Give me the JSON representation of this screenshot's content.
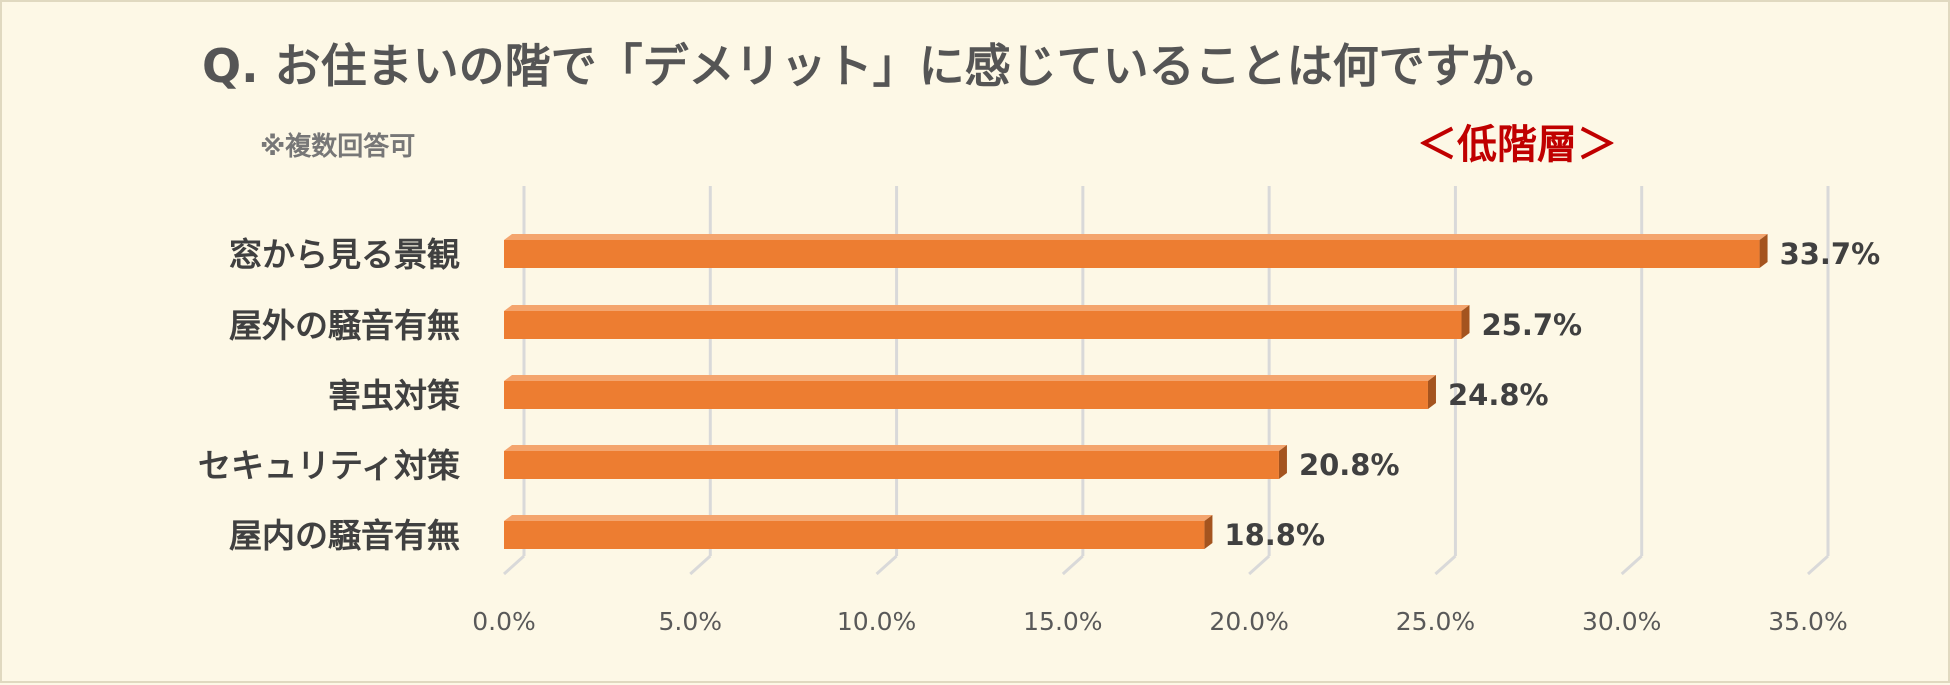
{
  "header": {
    "title": "Q. お住まいの階で「デメリット」に感じていることは何ですか。",
    "note": "※複数回答可",
    "segment": "＜低階層＞"
  },
  "colors": {
    "bar_front": "#ed7d31",
    "bar_top": "#f4a56e",
    "bar_side": "#a4541f",
    "grid": "#d9d9d9",
    "background": "#fdf8e6"
  },
  "chart_data": {
    "type": "bar",
    "orientation": "horizontal",
    "categories": [
      "窓から見る景観",
      "屋外の騒音有無",
      "害虫対策",
      "セキュリティ対策",
      "屋内の騒音有無"
    ],
    "values": [
      33.7,
      25.7,
      24.8,
      20.8,
      18.8
    ],
    "value_labels": [
      "33.7%",
      "25.7%",
      "24.8%",
      "20.8%",
      "18.8%"
    ],
    "xlim": [
      0,
      35
    ],
    "xticks": [
      0,
      5,
      10,
      15,
      20,
      25,
      30,
      35
    ],
    "xtick_labels": [
      "0.0%",
      "5.0%",
      "10.0%",
      "15.0%",
      "20.0%",
      "25.0%",
      "30.0%",
      "35.0%"
    ],
    "grid": true,
    "legend": false,
    "style": "3d-bar"
  }
}
